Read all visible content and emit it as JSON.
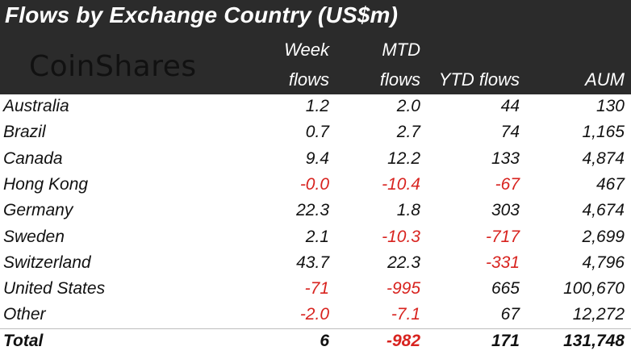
{
  "title": "Flows by Exchange Country (US$m)",
  "logo": "CoinShares",
  "columns": {
    "week": [
      "Week",
      "flows"
    ],
    "mtd": [
      "MTD",
      "flows"
    ],
    "ytd": "YTD flows",
    "aum": "AUM"
  },
  "rows": [
    {
      "name": "Australia",
      "week": "1.2",
      "mtd": "2.0",
      "ytd": "44",
      "aum": "130"
    },
    {
      "name": "Brazil",
      "week": "0.7",
      "mtd": "2.7",
      "ytd": "74",
      "aum": "1,165"
    },
    {
      "name": "Canada",
      "week": "9.4",
      "mtd": "12.2",
      "ytd": "133",
      "aum": "4,874"
    },
    {
      "name": "Hong Kong",
      "week": "-0.0",
      "mtd": "-10.4",
      "ytd": "-67",
      "aum": "467"
    },
    {
      "name": "Germany",
      "week": "22.3",
      "mtd": "1.8",
      "ytd": "303",
      "aum": "4,674"
    },
    {
      "name": "Sweden",
      "week": "2.1",
      "mtd": "-10.3",
      "ytd": "-717",
      "aum": "2,699"
    },
    {
      "name": "Switzerland",
      "week": "43.7",
      "mtd": "22.3",
      "ytd": "-331",
      "aum": "4,796"
    },
    {
      "name": "United States",
      "week": "-71",
      "mtd": "-995",
      "ytd": "665",
      "aum": "100,670"
    },
    {
      "name": "Other",
      "week": "-2.0",
      "mtd": "-7.1",
      "ytd": "67",
      "aum": "12,272"
    }
  ],
  "total": {
    "name": "Total",
    "week": "6",
    "mtd": "-982",
    "ytd": "171",
    "aum": "131,748"
  },
  "colors": {
    "header_bg": "#2b2b2b",
    "negative": "#d8231f",
    "text": "#111111"
  }
}
